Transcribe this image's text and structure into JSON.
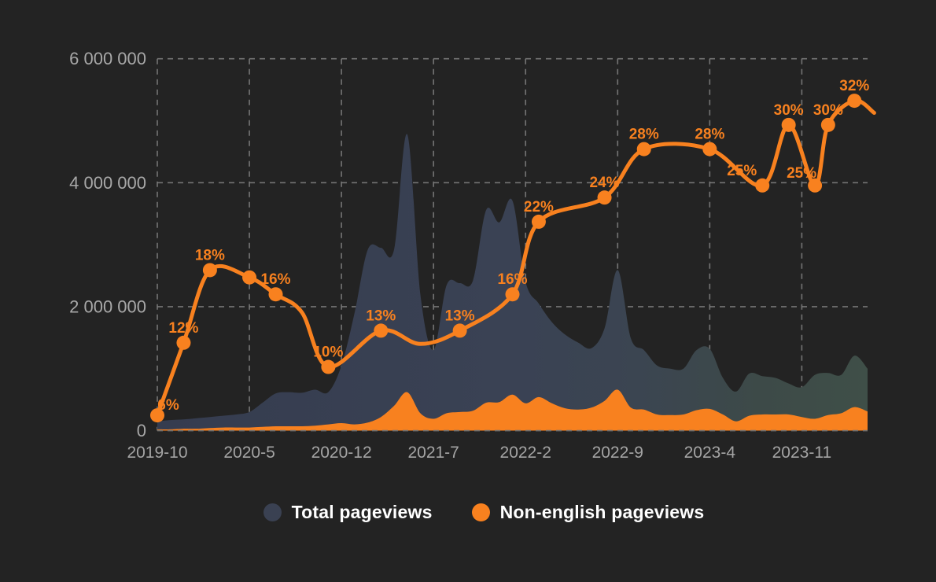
{
  "colors": {
    "background": "#232323",
    "grid": "#7D7D7D",
    "baseline_over_areas": "#6F6F6F",
    "tick_text": "#A8A8A8",
    "orange": "#F8811F",
    "legend_text": "#FFFFFF",
    "total_legend_dot": "#3A4152",
    "total_area_gradient": [
      "#353C4F",
      "#3A4254",
      "#3B4551",
      "#3D4A48",
      "#3F4F48"
    ]
  },
  "legend": {
    "items": [
      {
        "label": "Total pageviews",
        "color": "#3A4152"
      },
      {
        "label": "Non-english pageviews",
        "color": "#F8811F"
      }
    ]
  },
  "chart_data": {
    "type": "area",
    "title": "",
    "x_start": "2019-10",
    "x_month_step": 1,
    "grid": true,
    "legend_position": "bottom",
    "ylim": [
      0,
      6000000
    ],
    "y_ticks": [
      {
        "value": 0,
        "label": "0"
      },
      {
        "value": 2000000,
        "label": "2 000 000"
      },
      {
        "value": 4000000,
        "label": "4 000 000"
      },
      {
        "value": 6000000,
        "label": "6 000 000"
      }
    ],
    "x_ticks": [
      {
        "month": 0,
        "label": "2019-10"
      },
      {
        "month": 7,
        "label": "2020-5"
      },
      {
        "month": 14,
        "label": "2020-12"
      },
      {
        "month": 21,
        "label": "2021-7"
      },
      {
        "month": 28,
        "label": "2022-2"
      },
      {
        "month": 35,
        "label": "2022-9"
      },
      {
        "month": 42,
        "label": "2023-4"
      },
      {
        "month": 49,
        "label": "2023-11"
      }
    ],
    "series": [
      {
        "name": "Total pageviews",
        "type": "area",
        "values_millions": [
          0.15,
          0.17,
          0.18,
          0.2,
          0.22,
          0.24,
          0.26,
          0.3,
          0.45,
          0.6,
          0.62,
          0.61,
          0.66,
          0.62,
          1.05,
          1.9,
          2.92,
          2.95,
          2.92,
          4.78,
          2.2,
          1.3,
          2.35,
          2.38,
          2.42,
          3.56,
          3.36,
          3.71,
          2.4,
          2.05,
          1.75,
          1.55,
          1.42,
          1.33,
          1.65,
          2.59,
          1.49,
          1.3,
          1.05,
          1.0,
          1.0,
          1.3,
          1.32,
          0.85,
          0.63,
          0.92,
          0.88,
          0.85,
          0.76,
          0.7,
          0.9,
          0.93,
          0.9,
          1.21,
          1.0
        ]
      },
      {
        "name": "Non-english pageviews",
        "type": "area",
        "values_millions": [
          0.02,
          0.02,
          0.03,
          0.03,
          0.04,
          0.05,
          0.05,
          0.05,
          0.06,
          0.07,
          0.07,
          0.07,
          0.08,
          0.1,
          0.12,
          0.1,
          0.13,
          0.22,
          0.4,
          0.62,
          0.28,
          0.19,
          0.28,
          0.3,
          0.32,
          0.45,
          0.46,
          0.58,
          0.44,
          0.54,
          0.44,
          0.36,
          0.34,
          0.37,
          0.48,
          0.66,
          0.37,
          0.34,
          0.26,
          0.25,
          0.26,
          0.33,
          0.35,
          0.26,
          0.15,
          0.24,
          0.26,
          0.26,
          0.26,
          0.22,
          0.19,
          0.25,
          0.28,
          0.38,
          0.31
        ]
      },
      {
        "name": "Non-english share (%)",
        "type": "line",
        "points": [
          {
            "month": 0,
            "pct": 6,
            "label": "6%",
            "marker": true,
            "dx": 14,
            "dy": 6
          },
          {
            "month": 2,
            "pct": 12,
            "label": "12%",
            "marker": true
          },
          {
            "month": 4,
            "pct": 18,
            "label": "18%",
            "marker": true
          },
          {
            "month": 7,
            "pct": 17.4,
            "label": "",
            "marker": true
          },
          {
            "month": 9,
            "pct": 16,
            "label": "16%",
            "marker": true
          },
          {
            "month": 11,
            "pct": 14.5,
            "label": "",
            "marker": false
          },
          {
            "month": 13,
            "pct": 10,
            "label": "10%",
            "marker": true
          },
          {
            "month": 17,
            "pct": 13,
            "label": "13%",
            "marker": true
          },
          {
            "month": 20,
            "pct": 11.9,
            "label": "",
            "marker": false
          },
          {
            "month": 23,
            "pct": 13,
            "label": "13%",
            "marker": true
          },
          {
            "month": 27,
            "pct": 16,
            "label": "16%",
            "marker": true
          },
          {
            "month": 29,
            "pct": 22,
            "label": "22%",
            "marker": true
          },
          {
            "month": 34,
            "pct": 24,
            "label": "24%",
            "marker": true
          },
          {
            "month": 37,
            "pct": 28,
            "label": "28%",
            "marker": true
          },
          {
            "month": 42,
            "pct": 28,
            "label": "28%",
            "marker": true
          },
          {
            "month": 46,
            "pct": 25,
            "label": "25%",
            "marker": true,
            "dx": -26,
            "dy": 0
          },
          {
            "month": 48,
            "pct": 30,
            "label": "30%",
            "marker": true
          },
          {
            "month": 50,
            "pct": 25,
            "label": "25%",
            "marker": true,
            "dx": -17,
            "dy": 3
          },
          {
            "month": 51,
            "pct": 30,
            "label": "30%",
            "marker": true
          },
          {
            "month": 53,
            "pct": 32,
            "label": "32%",
            "marker": true
          },
          {
            "month": 54.5,
            "pct": 31,
            "label": "",
            "marker": false
          }
        ]
      }
    ]
  }
}
